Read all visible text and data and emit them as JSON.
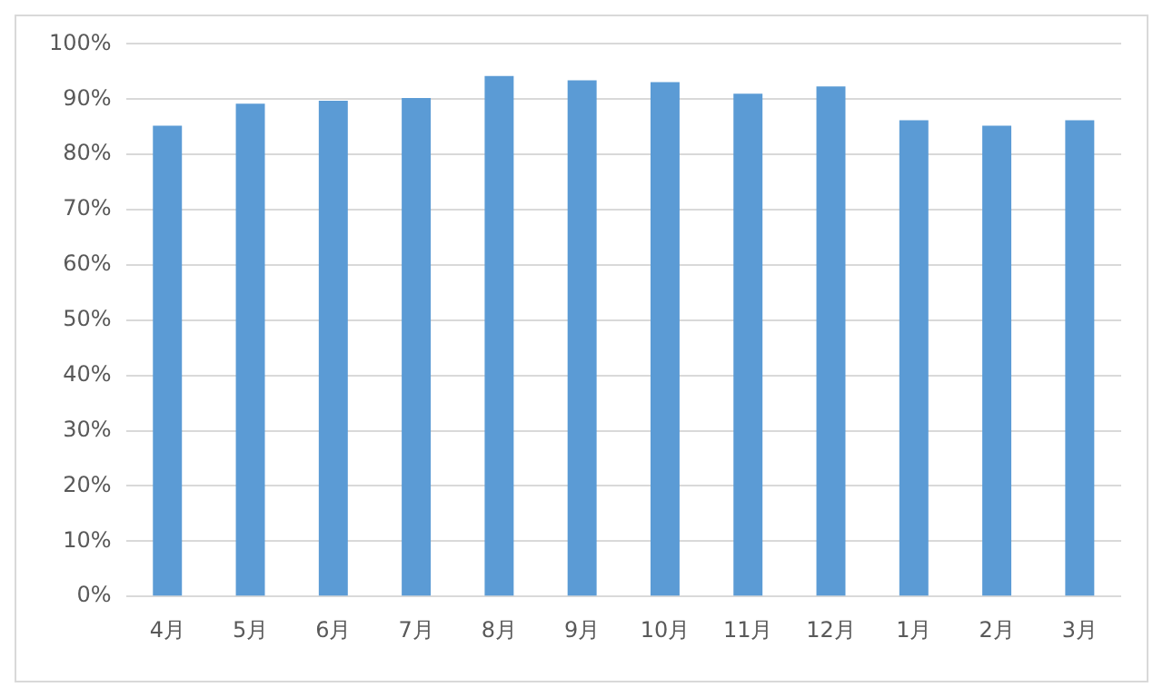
{
  "chart_data": {
    "type": "bar",
    "categories": [
      "4月",
      "5月",
      "6月",
      "7月",
      "8月",
      "9月",
      "10月",
      "11月",
      "12月",
      "1月",
      "2月",
      "3月"
    ],
    "values": [
      85.2,
      89.2,
      89.7,
      90.2,
      94.2,
      93.4,
      93.1,
      91,
      92.3,
      86.2,
      85.2,
      86.2
    ],
    "color": "#5b9bd5",
    "ylim": [
      0,
      100
    ],
    "yticks": [
      {
        "value": 0,
        "label": "0%"
      },
      {
        "value": 10,
        "label": "10%"
      },
      {
        "value": 20,
        "label": "20%"
      },
      {
        "value": 30,
        "label": "30%"
      },
      {
        "value": 40,
        "label": "40%"
      },
      {
        "value": 50,
        "label": "50%"
      },
      {
        "value": 60,
        "label": "60%"
      },
      {
        "value": 70,
        "label": "70%"
      },
      {
        "value": 80,
        "label": "80%"
      },
      {
        "value": 90,
        "label": "90%"
      },
      {
        "value": 100,
        "label": "100%"
      }
    ],
    "grid": "y",
    "legend": false
  }
}
